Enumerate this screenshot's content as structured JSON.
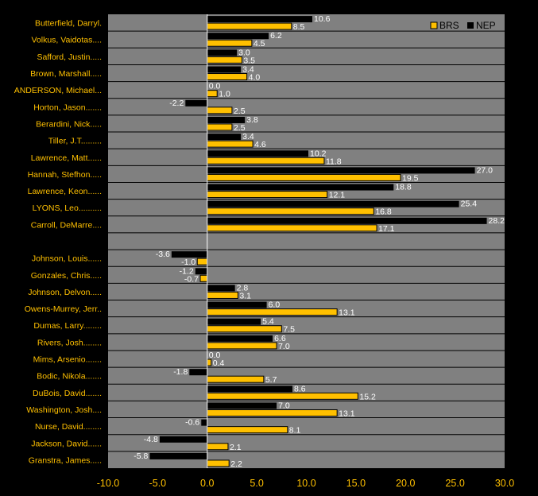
{
  "chart_data": {
    "type": "bar",
    "orientation": "horizontal",
    "xlim": [
      -10,
      30
    ],
    "xticks": [
      "-10.0",
      "-5.0",
      "0.0",
      "5.0",
      "10.0",
      "15.0",
      "20.0",
      "25.0",
      "30.0"
    ],
    "legend": {
      "position": "top-right"
    },
    "colors": {
      "BRS": "#ffc000",
      "NEP": "#000000",
      "background": "#808080",
      "label": "#ffc000"
    },
    "series": [
      {
        "name": "BRS",
        "values": [
          8.5,
          4.5,
          3.5,
          4.0,
          1.0,
          2.5,
          2.5,
          4.6,
          11.8,
          19.5,
          12.1,
          16.8,
          17.1,
          null,
          -1.0,
          -0.7,
          3.1,
          13.1,
          7.5,
          7.0,
          0.4,
          5.7,
          15.2,
          13.1,
          8.1,
          2.1,
          2.2
        ],
        "labels": [
          "8.5",
          "4.5",
          "3.5",
          "4.0",
          "1.0",
          "2.5",
          "2.5",
          "4.6",
          "11.8",
          "19.5",
          "12.1",
          "16.8",
          "17.1",
          null,
          "-1.0",
          "-0.7",
          "3.1",
          "13.1",
          "7.5",
          "7.0",
          "0.4",
          "5.7",
          "15.2",
          "13.1",
          "8.1",
          "2.1",
          "2.2"
        ]
      },
      {
        "name": "NEP",
        "values": [
          10.6,
          6.2,
          3.0,
          3.4,
          0.0,
          -2.2,
          3.8,
          3.4,
          10.2,
          27.0,
          18.8,
          25.4,
          28.2,
          null,
          -3.6,
          -1.2,
          2.8,
          6.0,
          5.4,
          6.6,
          0.0,
          -1.8,
          8.6,
          7.0,
          -0.6,
          -4.8,
          -5.8
        ],
        "labels": [
          "10.6",
          "6.2",
          "3.0",
          "3.4",
          "0.0",
          "-2.2",
          "3.8",
          "3.4",
          "10.2",
          "27.0",
          "18.8",
          "25.4",
          "28.2",
          null,
          "-3.6",
          "-1.2",
          "2.8",
          "6.0",
          "5.4",
          "6.6",
          "0.0",
          "-1.8",
          "8.6",
          "7.0",
          "-0.6",
          "-4.8",
          "-5.8"
        ]
      }
    ],
    "categories": [
      "Butterfield, Darryl.",
      "Volkus, Vaidotas....",
      "Safford, Justin.....",
      "Brown, Marshall.....",
      "ANDERSON, Michael...",
      "Horton, Jason.......",
      "Berardini, Nick.....",
      "Tiller, J.T.........",
      "Lawrence, Matt......",
      "Hannah, Stefhon.....",
      "Lawrence, Keon......",
      "LYONS, Leo..........",
      "Carroll, DeMarre....",
      "",
      "Johnson, Louis......",
      "Gonzales, Chris.....",
      "Johnson, Delvon.....",
      "Owens-Murrey, Jerr..",
      "Dumas, Larry........",
      "Rivers, Josh........",
      "Mims, Arsenio.......",
      "Bodic, Nikola.......",
      "DuBois, David.......",
      "Washington, Josh....",
      "Nurse, David........",
      "Jackson, David......",
      "Granstra, James....."
    ]
  }
}
